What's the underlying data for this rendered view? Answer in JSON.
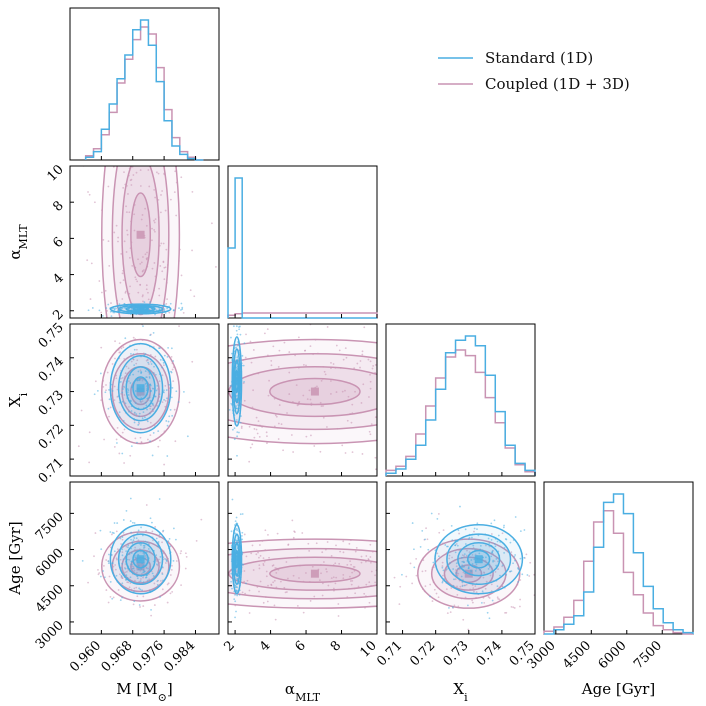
{
  "colors": {
    "standard": "#4aaee2",
    "coupled": "#c994b3"
  },
  "legend": {
    "position": "top-right",
    "entries": [
      {
        "name": "Standard (1D)",
        "color": "#4aaee2"
      },
      {
        "name": "Coupled (1D + 3D)",
        "color": "#c994b3"
      }
    ]
  },
  "chart_data": {
    "type": "corner",
    "title": "",
    "series": [
      "Standard (1D)",
      "Coupled (1D + 3D)"
    ],
    "parameters": [
      {
        "key": "mass",
        "label_main": "M [M",
        "label_sym": "⊙",
        "label_end": "]",
        "range": [
          0.952,
          0.99
        ],
        "ticks": [
          0.96,
          0.968,
          0.976,
          0.984
        ],
        "tick_labels": [
          "0.960",
          "0.968",
          "0.976",
          "0.984"
        ]
      },
      {
        "key": "alpha",
        "label_main": "α",
        "label_sub": "MLT",
        "range": [
          1.6,
          10
        ],
        "ticks": [
          2,
          4,
          6,
          8,
          10
        ],
        "tick_labels": [
          "2",
          "4",
          "6",
          "8",
          "10"
        ]
      },
      {
        "key": "xi",
        "label_main": "X",
        "label_sub": "i",
        "range": [
          0.705,
          0.75
        ],
        "ticks": [
          0.71,
          0.72,
          0.73,
          0.74,
          0.75
        ],
        "tick_labels": [
          "0.71",
          "0.72",
          "0.73",
          "0.74",
          "0.75"
        ]
      },
      {
        "key": "age",
        "label_main": "Age [Gyr]",
        "range": [
          2500,
          8800
        ],
        "ticks": [
          3000,
          4500,
          6000,
          7500
        ],
        "tick_labels": [
          "3000",
          "4500",
          "6000",
          "7500"
        ]
      }
    ],
    "marginals": [
      {
        "parameter": "mass",
        "bin_edges": [
          0.956,
          0.958,
          0.96,
          0.962,
          0.964,
          0.966,
          0.968,
          0.97,
          0.972,
          0.974,
          0.976,
          0.978,
          0.98,
          0.982,
          0.984,
          0.986
        ],
        "standard": [
          2,
          6,
          22,
          40,
          58,
          75,
          93,
          100,
          82,
          56,
          28,
          10,
          4,
          1,
          0
        ],
        "coupled": [
          3,
          8,
          18,
          34,
          55,
          72,
          86,
          95,
          90,
          66,
          36,
          16,
          6,
          2,
          0
        ]
      },
      {
        "parameter": "alpha",
        "bin_edges": [
          1.6,
          2.0,
          2.4,
          10.0
        ],
        "standard": [
          50,
          100,
          0
        ],
        "coupled": [
          2,
          3,
          3.6
        ]
      },
      {
        "parameter": "xi",
        "bin_edges": [
          0.705,
          0.708,
          0.711,
          0.714,
          0.717,
          0.72,
          0.723,
          0.726,
          0.729,
          0.732,
          0.735,
          0.738,
          0.741,
          0.744,
          0.747,
          0.75
        ],
        "standard": [
          2,
          5,
          12,
          22,
          40,
          62,
          88,
          97,
          100,
          93,
          72,
          46,
          22,
          9,
          4
        ],
        "coupled": [
          4,
          7,
          14,
          30,
          50,
          70,
          85,
          90,
          86,
          74,
          56,
          38,
          20,
          8,
          3
        ]
      },
      {
        "parameter": "age",
        "bin_edges": [
          2500,
          2920,
          3340,
          3760,
          4180,
          4600,
          5020,
          5440,
          5860,
          6280,
          6700,
          7120,
          7540,
          7960,
          8380,
          8800
        ],
        "standard": [
          0,
          3,
          7,
          13,
          30,
          62,
          94,
          100,
          86,
          58,
          34,
          18,
          8,
          3,
          1
        ],
        "coupled": [
          2,
          5,
          12,
          24,
          52,
          80,
          88,
          72,
          44,
          28,
          15,
          6,
          3,
          1,
          0
        ]
      }
    ],
    "joint_peaks": [
      {
        "x": "mass",
        "y": "alpha",
        "standard_mean": [
          0.97,
          2.1
        ],
        "coupled_mean": [
          0.97,
          6.2
        ]
      },
      {
        "x": "mass",
        "y": "xi",
        "standard_mean": [
          0.97,
          0.731
        ],
        "coupled_mean": [
          0.97,
          0.73
        ]
      },
      {
        "x": "alpha",
        "y": "xi",
        "standard_mean": [
          2.1,
          0.733
        ],
        "coupled_mean": [
          6.5,
          0.73
        ]
      },
      {
        "x": "mass",
        "y": "age",
        "standard_mean": [
          0.97,
          5600
        ],
        "coupled_mean": [
          0.97,
          5300
        ]
      },
      {
        "x": "alpha",
        "y": "age",
        "standard_mean": [
          2.1,
          5600
        ],
        "coupled_mean": [
          6.5,
          5000
        ]
      },
      {
        "x": "xi",
        "y": "age",
        "standard_mean": [
          0.733,
          5600
        ],
        "coupled_mean": [
          0.73,
          5000
        ]
      }
    ]
  }
}
